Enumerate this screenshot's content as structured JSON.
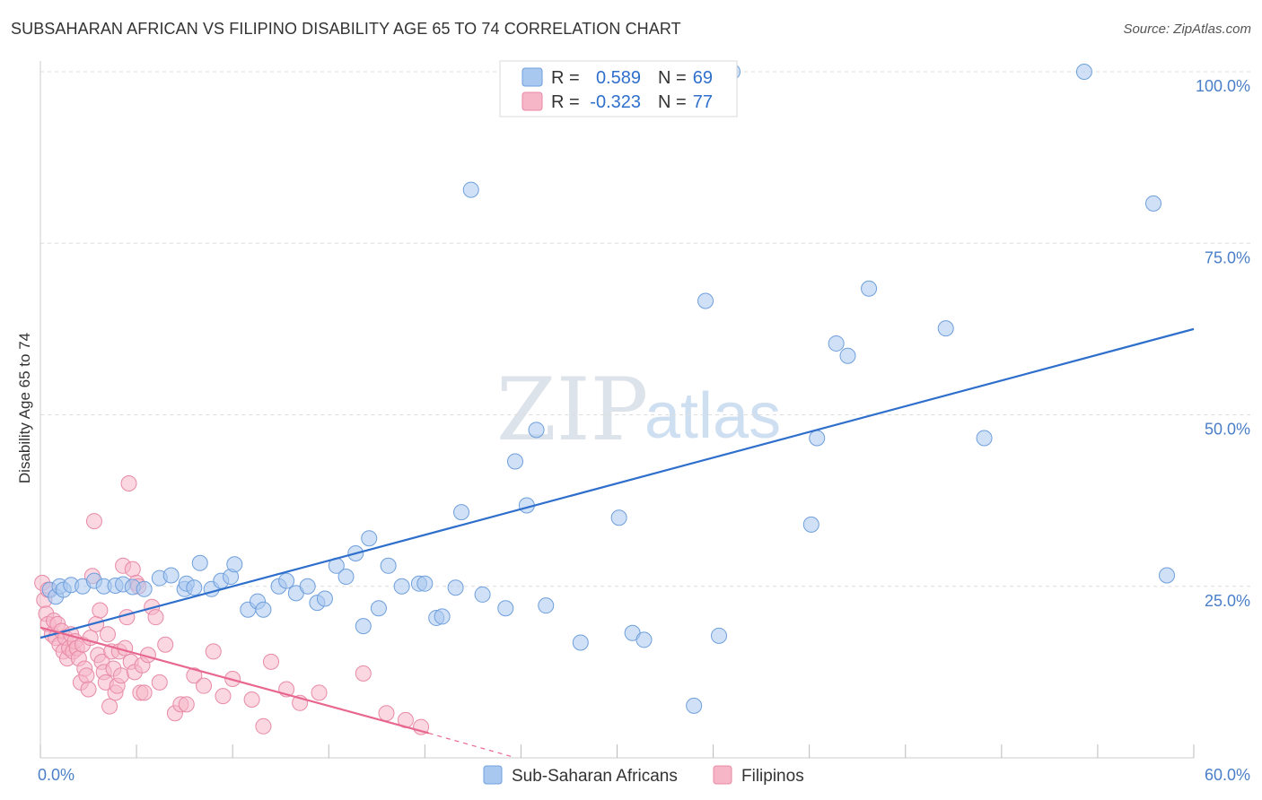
{
  "header": {
    "title": "SUBSAHARAN AFRICAN VS FILIPINO DISABILITY AGE 65 TO 74 CORRELATION CHART",
    "source": "Source: ZipAtlas.com"
  },
  "watermark": {
    "zip": "ZIP",
    "atlas": "atlas"
  },
  "colors": {
    "blue_fill": "#a9c8f0",
    "blue_stroke": "#6f9fdc",
    "blue_line": "#2f6fcc",
    "pink_fill": "#f6b6c8",
    "pink_stroke": "#e88aa6",
    "pink_line": "#e8678f",
    "grid": "#dddddd",
    "axis_label": "#4a7fc8"
  },
  "legend": {
    "rows": [
      {
        "r_label": "R =",
        "r_value": "0.589",
        "n_label": "N =",
        "n_value": "69"
      },
      {
        "r_label": "R =",
        "r_value": "-0.323",
        "n_label": "N =",
        "n_value": "77"
      }
    ]
  },
  "chart_data": {
    "type": "scatter",
    "title": "SUBSAHARAN AFRICAN VS FILIPINO DISABILITY AGE 65 TO 74 CORRELATION CHART",
    "xlabel": "",
    "ylabel": "Disability Age 65 to 74",
    "xlim": [
      0,
      60
    ],
    "ylim": [
      0,
      102
    ],
    "x_tick_labels": [
      "0.0%",
      "60.0%"
    ],
    "y_ticks": [
      25,
      50,
      75,
      100
    ],
    "y_tick_labels": [
      "25.0%",
      "50.0%",
      "75.0%",
      "100.0%"
    ],
    "grid": true,
    "legend_position": "top-center",
    "series": [
      {
        "name": "Sub-Saharan Africans",
        "color": "#a9c8f0",
        "R": 0.589,
        "N": 69,
        "trend": {
          "x": [
            0,
            60
          ],
          "y": [
            17.5,
            62.5
          ]
        },
        "points": [
          [
            0.5,
            24.5
          ],
          [
            0.8,
            23.5
          ],
          [
            1.0,
            25.0
          ],
          [
            1.2,
            24.5
          ],
          [
            1.6,
            25.2
          ],
          [
            2.2,
            25.0
          ],
          [
            2.8,
            25.8
          ],
          [
            3.3,
            25.0
          ],
          [
            3.9,
            25.1
          ],
          [
            4.3,
            25.3
          ],
          [
            4.8,
            24.9
          ],
          [
            5.4,
            24.6
          ],
          [
            6.2,
            26.2
          ],
          [
            6.8,
            26.6
          ],
          [
            7.5,
            24.6
          ],
          [
            7.6,
            25.4
          ],
          [
            8.0,
            24.8
          ],
          [
            8.3,
            28.4
          ],
          [
            8.9,
            24.6
          ],
          [
            9.4,
            25.8
          ],
          [
            9.9,
            26.4
          ],
          [
            10.1,
            28.2
          ],
          [
            10.8,
            21.6
          ],
          [
            11.3,
            22.8
          ],
          [
            11.6,
            21.6
          ],
          [
            12.4,
            25.0
          ],
          [
            12.8,
            25.8
          ],
          [
            13.3,
            24.0
          ],
          [
            13.9,
            25.0
          ],
          [
            14.4,
            22.6
          ],
          [
            14.8,
            23.2
          ],
          [
            15.4,
            28.0
          ],
          [
            15.9,
            26.4
          ],
          [
            16.4,
            29.8
          ],
          [
            16.8,
            19.2
          ],
          [
            17.1,
            32.0
          ],
          [
            17.6,
            21.8
          ],
          [
            18.1,
            28.0
          ],
          [
            18.8,
            25.0
          ],
          [
            19.7,
            25.4
          ],
          [
            20.0,
            25.4
          ],
          [
            20.6,
            20.4
          ],
          [
            20.9,
            20.6
          ],
          [
            21.6,
            24.8
          ],
          [
            21.9,
            35.8
          ],
          [
            22.4,
            82.8
          ],
          [
            23.0,
            23.8
          ],
          [
            24.2,
            21.8
          ],
          [
            24.7,
            43.2
          ],
          [
            25.3,
            36.8
          ],
          [
            25.8,
            47.8
          ],
          [
            26.3,
            22.2
          ],
          [
            28.1,
            16.8
          ],
          [
            30.1,
            35.0
          ],
          [
            30.8,
            18.2
          ],
          [
            31.4,
            17.2
          ],
          [
            34.0,
            7.6
          ],
          [
            34.6,
            66.6
          ],
          [
            35.3,
            17.8
          ],
          [
            36.0,
            100.0
          ],
          [
            40.1,
            34.0
          ],
          [
            40.4,
            46.6
          ],
          [
            41.4,
            60.4
          ],
          [
            42.0,
            58.6
          ],
          [
            43.1,
            68.4
          ],
          [
            47.1,
            62.6
          ],
          [
            49.1,
            46.6
          ],
          [
            54.3,
            100.0
          ],
          [
            57.9,
            80.8
          ],
          [
            58.6,
            26.6
          ]
        ]
      },
      {
        "name": "Filipinos",
        "color": "#f6b6c8",
        "R": -0.323,
        "N": 77,
        "trend": {
          "x": [
            0,
            20.2
          ],
          "y": [
            19.0,
            3.6
          ]
        },
        "trend_extension": {
          "x": [
            20.2,
            24.5
          ],
          "y": [
            3.6,
            0.2
          ]
        },
        "points": [
          [
            0.1,
            25.5
          ],
          [
            0.2,
            23.0
          ],
          [
            0.3,
            21.0
          ],
          [
            0.4,
            24.5
          ],
          [
            0.4,
            19.5
          ],
          [
            0.6,
            18.0
          ],
          [
            0.7,
            20.0
          ],
          [
            0.8,
            17.5
          ],
          [
            0.9,
            19.5
          ],
          [
            1.0,
            16.5
          ],
          [
            1.1,
            18.5
          ],
          [
            1.2,
            15.5
          ],
          [
            1.3,
            17.5
          ],
          [
            1.4,
            14.5
          ],
          [
            1.5,
            16.0
          ],
          [
            1.6,
            18.0
          ],
          [
            1.7,
            15.5
          ],
          [
            1.8,
            17.0
          ],
          [
            1.9,
            16.0
          ],
          [
            2.0,
            14.5
          ],
          [
            2.1,
            11.0
          ],
          [
            2.2,
            16.5
          ],
          [
            2.3,
            13.0
          ],
          [
            2.4,
            12.0
          ],
          [
            2.5,
            10.0
          ],
          [
            2.6,
            17.5
          ],
          [
            2.7,
            26.5
          ],
          [
            2.8,
            34.5
          ],
          [
            2.9,
            19.5
          ],
          [
            3.0,
            15.0
          ],
          [
            3.1,
            21.5
          ],
          [
            3.2,
            14.0
          ],
          [
            3.3,
            12.5
          ],
          [
            3.4,
            11.0
          ],
          [
            3.5,
            18.0
          ],
          [
            3.6,
            7.5
          ],
          [
            3.7,
            15.5
          ],
          [
            3.8,
            13.0
          ],
          [
            3.9,
            9.5
          ],
          [
            4.0,
            10.5
          ],
          [
            4.1,
            15.5
          ],
          [
            4.2,
            12.0
          ],
          [
            4.3,
            28.0
          ],
          [
            4.4,
            16.0
          ],
          [
            4.5,
            20.5
          ],
          [
            4.6,
            40.0
          ],
          [
            4.7,
            14.0
          ],
          [
            4.8,
            27.5
          ],
          [
            4.9,
            12.5
          ],
          [
            5.0,
            25.5
          ],
          [
            5.1,
            25.0
          ],
          [
            5.2,
            9.5
          ],
          [
            5.3,
            13.5
          ],
          [
            5.4,
            9.5
          ],
          [
            5.6,
            15.0
          ],
          [
            5.8,
            22.0
          ],
          [
            6.0,
            20.5
          ],
          [
            6.2,
            11.0
          ],
          [
            6.5,
            16.5
          ],
          [
            7.0,
            6.5
          ],
          [
            7.3,
            7.8
          ],
          [
            7.6,
            7.8
          ],
          [
            8.0,
            12.0
          ],
          [
            8.5,
            10.5
          ],
          [
            9.0,
            15.5
          ],
          [
            9.5,
            9.0
          ],
          [
            10.0,
            11.5
          ],
          [
            11.0,
            8.5
          ],
          [
            11.6,
            4.6
          ],
          [
            12.0,
            14.0
          ],
          [
            12.8,
            10.0
          ],
          [
            13.5,
            8.0
          ],
          [
            14.5,
            9.5
          ],
          [
            16.8,
            12.3
          ],
          [
            18.0,
            6.5
          ],
          [
            19.0,
            5.5
          ],
          [
            19.8,
            4.5
          ]
        ]
      }
    ]
  },
  "bottom_legend": {
    "items": [
      {
        "label": "Sub-Saharan Africans"
      },
      {
        "label": "Filipinos"
      }
    ]
  }
}
